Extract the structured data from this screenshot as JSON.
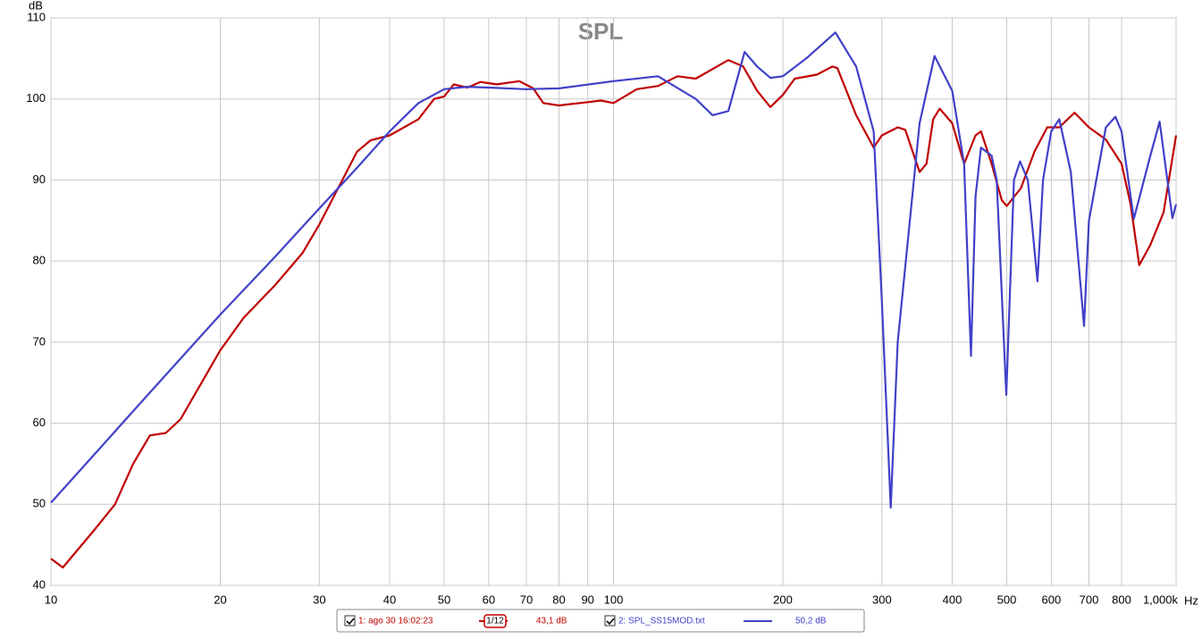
{
  "chart_data": {
    "type": "line",
    "title": "SPL",
    "y_label": "dB",
    "x_label": "Hz",
    "log_x": true,
    "grid": true,
    "xlim": [
      10,
      1000
    ],
    "ylim": [
      40,
      110
    ],
    "xticks": [
      10,
      20,
      30,
      40,
      50,
      60,
      70,
      80,
      90,
      100,
      200,
      300,
      400,
      500,
      600,
      700,
      800,
      {
        "value": 1000,
        "label": "1,000k"
      }
    ],
    "yticks": [
      40,
      50,
      60,
      70,
      80,
      90,
      100,
      110
    ],
    "series": [
      {
        "name": "1: ago 30 16:02:23",
        "color": "#c00000",
        "level": "43,1 dB",
        "smoothing": "1/12",
        "x": [
          10,
          10.5,
          12,
          13,
          14,
          15,
          16,
          17,
          18,
          20,
          22,
          25,
          28,
          30,
          35,
          37,
          40,
          45,
          48,
          50,
          52,
          55,
          58,
          62,
          68,
          72,
          75,
          80,
          90,
          95,
          100,
          110,
          120,
          130,
          140,
          160,
          170,
          180,
          190,
          200,
          210,
          230,
          245,
          250,
          270,
          290,
          300,
          320,
          330,
          350,
          360,
          370,
          380,
          400,
          420,
          440,
          450,
          470,
          490,
          500,
          530,
          560,
          590,
          620,
          660,
          700,
          750,
          800,
          830,
          860,
          900,
          950,
          1000
        ],
        "values": [
          43.3,
          42.2,
          47,
          50,
          55,
          58.5,
          58.8,
          60.5,
          63.5,
          69,
          73,
          77,
          81,
          84.5,
          93.5,
          94.9,
          95.5,
          97.5,
          100,
          100.3,
          101.8,
          101.4,
          102.1,
          101.8,
          102.2,
          101.3,
          99.5,
          99.2,
          99.6,
          99.8,
          99.5,
          101.2,
          101.6,
          102.8,
          102.5,
          104.8,
          104,
          101,
          99,
          100.5,
          102.5,
          103,
          104,
          103.8,
          98,
          94,
          95.5,
          96.5,
          96.2,
          91,
          92,
          97.5,
          98.8,
          97,
          92,
          95.5,
          96,
          92,
          87.5,
          86.8,
          89,
          93.5,
          96.5,
          96.5,
          98.3,
          96.5,
          95,
          92,
          87,
          79.5,
          82,
          86,
          95.5
        ]
      },
      {
        "name": "2: SPL_SS15MOD.txt",
        "color": "#4040c8",
        "level": "50,2 dB",
        "x": [
          10,
          12,
          15,
          20,
          25,
          30,
          35,
          40,
          45,
          50,
          55,
          60,
          70,
          80,
          100,
          120,
          140,
          150,
          160,
          171,
          180,
          190,
          200,
          220,
          248,
          270,
          290,
          300,
          311,
          320,
          350,
          372,
          400,
          420,
          432,
          440,
          450,
          470,
          480,
          499,
          515,
          528,
          545,
          567,
          580,
          600,
          620,
          650,
          686,
          700,
          750,
          780,
          800,
          841,
          900,
          935,
          985,
          1000
        ],
        "values": [
          50.2,
          56.3,
          63.8,
          73.4,
          80.5,
          86.5,
          91.5,
          96,
          99.5,
          101.2,
          101.5,
          101.4,
          101.2,
          101.3,
          102.2,
          102.8,
          100,
          98,
          98.5,
          105.8,
          104,
          102.6,
          102.8,
          105,
          108.2,
          104,
          96,
          75,
          49.6,
          70,
          97,
          105.3,
          101,
          92,
          68.3,
          88,
          94,
          93,
          90,
          63.5,
          90,
          92.3,
          90,
          77.5,
          90,
          96,
          97.5,
          91,
          72,
          85,
          96.5,
          97.8,
          96,
          85.2,
          93,
          97.2,
          85.3,
          87
        ]
      }
    ]
  }
}
